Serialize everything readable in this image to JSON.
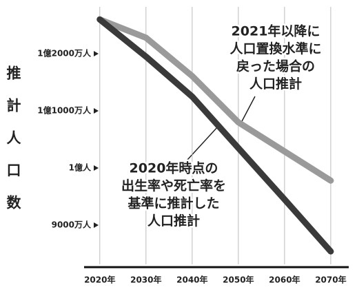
{
  "chart_data": {
    "type": "line",
    "y_label": "推計人口数",
    "x": [
      2020,
      2030,
      2040,
      2050,
      2060,
      2070
    ],
    "series": [
      {
        "name": "2020年時点の出生率や死亡率を基準に推計した人口推計",
        "color": "#3a3a3a",
        "values": [
          12600,
          11950,
          11250,
          10350,
          9450,
          8540
        ]
      },
      {
        "name": "2021年以降に人口置換水準に戻った場合の人口推計",
        "color": "#9a9a9a",
        "values": [
          12600,
          12280,
          11610,
          10800,
          10290,
          9780
        ]
      }
    ],
    "annotations": [
      {
        "lines": [
          "2021年以降に",
          "人口置換水準に",
          "戻った場合の",
          "人口推計"
        ]
      },
      {
        "lines": [
          "2020年時点の",
          "出生率や死亡率を",
          "基準に推計した",
          "人口推計"
        ]
      }
    ],
    "xlim": [
      2016.6,
      2073
    ],
    "xticks": [
      {
        "value": 2020,
        "label": "2020年"
      },
      {
        "value": 2030,
        "label": "2030年"
      },
      {
        "value": 2040,
        "label": "2040年"
      },
      {
        "value": 2050,
        "label": "2050年"
      },
      {
        "value": 2060,
        "label": "2060年"
      },
      {
        "value": 2070,
        "label": "2070年"
      }
    ],
    "ylim": [
      8265,
      12820
    ],
    "yticks": [
      {
        "value": 9000,
        "label": "9000万人"
      },
      {
        "value": 10000,
        "label": "1億人"
      },
      {
        "value": 11000,
        "label": "1億1000万人"
      },
      {
        "value": 12000,
        "label": "1億2000万人"
      }
    ],
    "grid": true
  }
}
